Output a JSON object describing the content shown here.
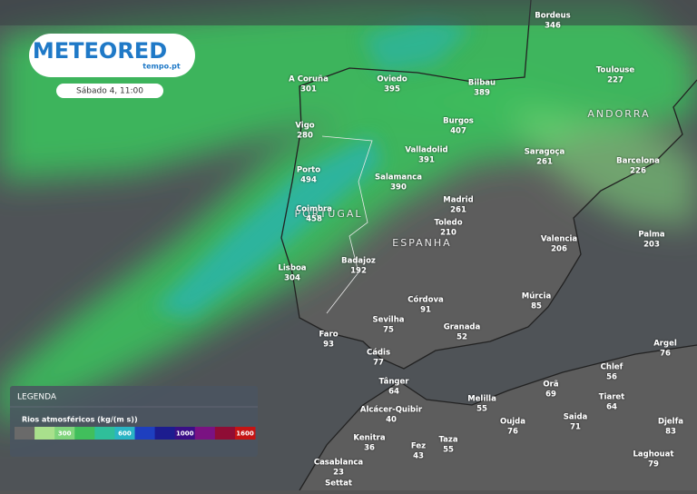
{
  "logo": {
    "brand": "METEORED",
    "site": "tempo.pt"
  },
  "datetime": "Sábado 4, 11:00",
  "regions": [
    "ANDORRA",
    "PORTUGAL",
    "ESPANHA"
  ],
  "cities": [
    {
      "name": "Bordeus",
      "value": 346
    },
    {
      "name": "A Coruña",
      "value": 301
    },
    {
      "name": "Oviedo",
      "value": 395
    },
    {
      "name": "Bilbau",
      "value": 389
    },
    {
      "name": "Toulouse",
      "value": 227
    },
    {
      "name": "Vigo",
      "value": 280
    },
    {
      "name": "Burgos",
      "value": 407
    },
    {
      "name": "Valladolid",
      "value": 391
    },
    {
      "name": "Saragoça",
      "value": 261
    },
    {
      "name": "Barcelona",
      "value": 226
    },
    {
      "name": "Porto",
      "value": 494
    },
    {
      "name": "Salamanca",
      "value": 390
    },
    {
      "name": "Madrid",
      "value": 261
    },
    {
      "name": "Coimbra",
      "value": 458
    },
    {
      "name": "Toledo",
      "value": 210
    },
    {
      "name": "Valencia",
      "value": 206
    },
    {
      "name": "Palma",
      "value": 203
    },
    {
      "name": "Lisboa",
      "value": 304
    },
    {
      "name": "Badajoz",
      "value": 192
    },
    {
      "name": "Córdova",
      "value": 91
    },
    {
      "name": "Múrcia",
      "value": 85
    },
    {
      "name": "Sevilha",
      "value": 75
    },
    {
      "name": "Granada",
      "value": 52
    },
    {
      "name": "Faro",
      "value": 93
    },
    {
      "name": "Cádis",
      "value": 77
    },
    {
      "name": "Argel",
      "value": 76
    },
    {
      "name": "Chlef",
      "value": 56
    },
    {
      "name": "Tânger",
      "value": 64
    },
    {
      "name": "Orã",
      "value": 69
    },
    {
      "name": "Tiaret",
      "value": 64
    },
    {
      "name": "Melilla",
      "value": 55
    },
    {
      "name": "Alcácer-Quibir",
      "value": 40
    },
    {
      "name": "Saida",
      "value": 71
    },
    {
      "name": "Oujda",
      "value": 76
    },
    {
      "name": "Djelfa",
      "value": 83
    },
    {
      "name": "Kenitra",
      "value": 36
    },
    {
      "name": "Fez",
      "value": 43
    },
    {
      "name": "Taza",
      "value": 55
    },
    {
      "name": "Laghouat",
      "value": 79
    },
    {
      "name": "Casablanca",
      "value": 23
    },
    {
      "name": "Settat"
    }
  ],
  "legend": {
    "title": "LEGENDA",
    "subtitle": "Rios atmosféricos (kg/(m s))",
    "colors": [
      "#6a6a6a",
      "#a9e08c",
      "#7fd47c",
      "#41bf5c",
      "#2fbf9a",
      "#2ab4c4",
      "#1e3fbf",
      "#1c1c8f",
      "#3a0f86",
      "#7a1282",
      "#8f0d35",
      "#c41414"
    ],
    "labels": [
      300,
      600,
      1000,
      1600
    ]
  }
}
